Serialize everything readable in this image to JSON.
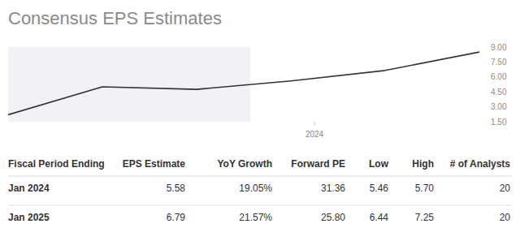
{
  "chart_data": {
    "type": "line",
    "title": "Consensus EPS Estimates",
    "x": [
      2020.75,
      2021.75,
      2022.75,
      2023.75,
      2024.75,
      2025.75
    ],
    "values": [
      2.2,
      5.0,
      4.75,
      5.6,
      6.65,
      8.5
    ],
    "color": "#333333",
    "highlight_range": [
      2020.75,
      2023.32
    ],
    "xlim": [
      2020.75,
      2025.75
    ],
    "xticks": [
      2024
    ],
    "ylim": [
      1.5,
      9
    ],
    "yticks": [
      {
        "value": 1.5,
        "label": "1.50"
      },
      {
        "value": 3,
        "label": "3.00"
      },
      {
        "value": 4.5,
        "label": "4.50"
      },
      {
        "value": 6,
        "label": "6.00"
      },
      {
        "value": 7.5,
        "label": "7.50"
      },
      {
        "value": 9,
        "label": "9.00"
      }
    ],
    "grid": false
  },
  "table": {
    "header": [
      "Fiscal Period Ending",
      "EPS Estimate",
      "YoY Growth",
      "Forward PE",
      "Low",
      "High",
      "# of Analysts"
    ],
    "rows": [
      [
        "Jan 2024",
        "5.58",
        "19.05%",
        "31.36",
        "5.46",
        "5.70",
        "20"
      ],
      [
        "Jan 2025",
        "6.79",
        "21.57%",
        "25.80",
        "6.44",
        "7.25",
        "20"
      ]
    ]
  }
}
